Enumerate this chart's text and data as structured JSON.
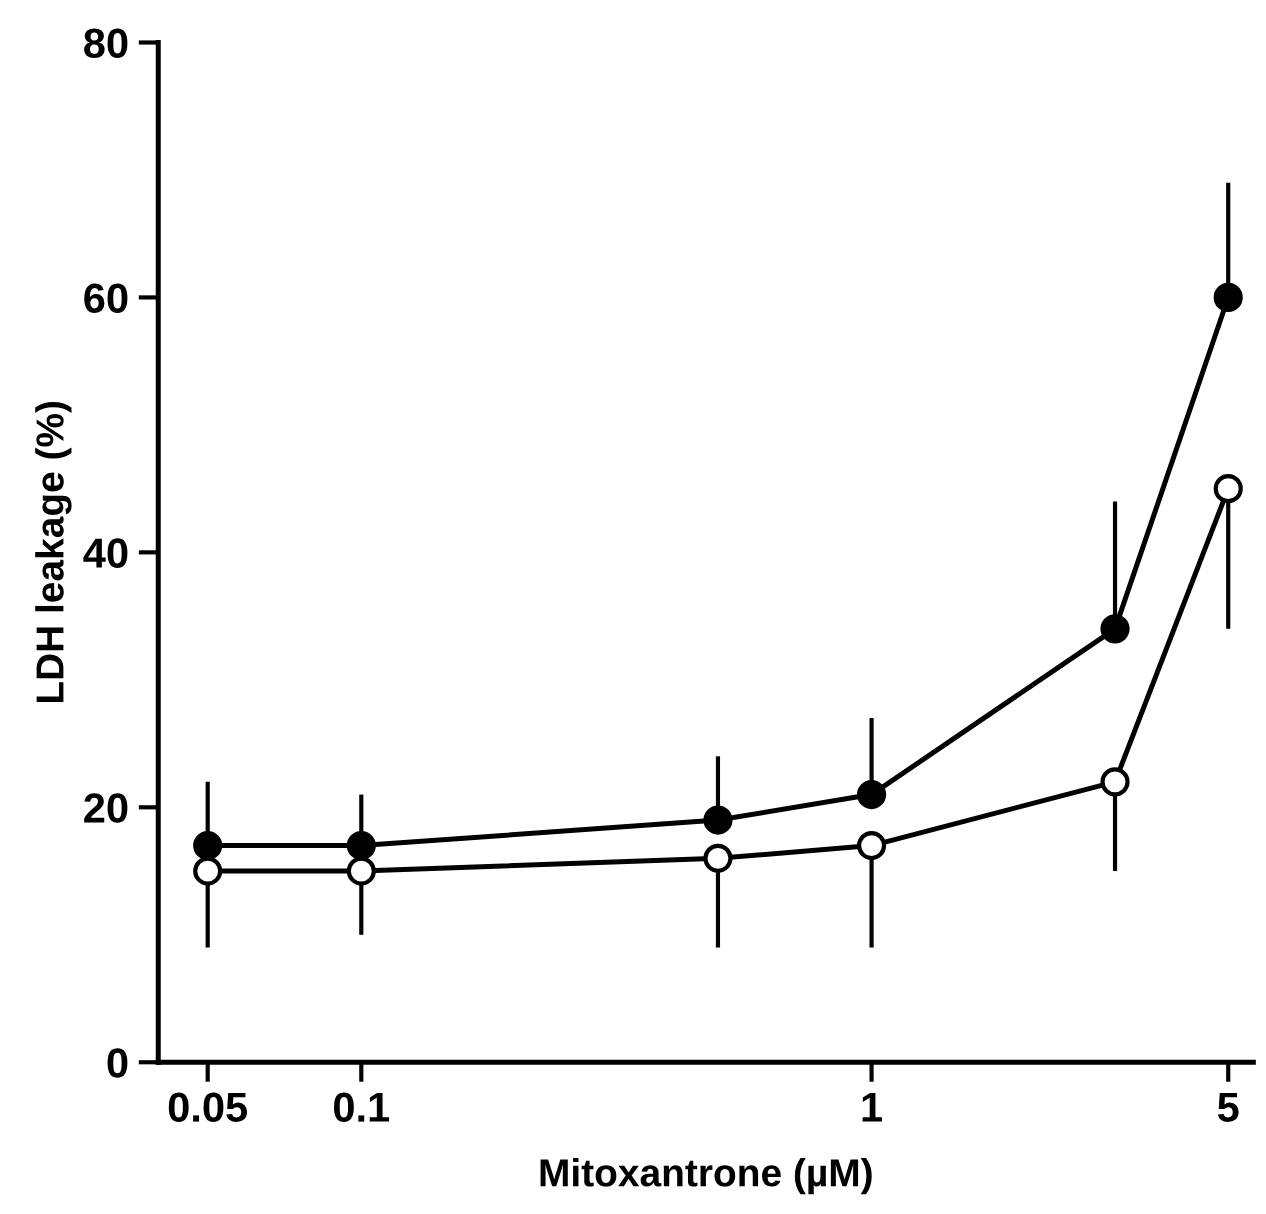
{
  "chart_data": {
    "type": "line",
    "xlabel": "Mitoxantrone (µM)",
    "ylabel": "LDH leakage (%)",
    "x": [
      0.05,
      0.1,
      0.5,
      1,
      3,
      5
    ],
    "series": [
      {
        "color": "#000000",
        "values": [
          17,
          17,
          19,
          21,
          34,
          60
        ],
        "errors": [
          [
            17,
            22
          ],
          [
            17,
            21
          ],
          [
            19,
            24
          ],
          [
            21,
            27
          ],
          [
            34,
            44
          ],
          [
            60,
            69
          ]
        ]
      },
      {
        "color": "#000000",
        "values": [
          15,
          15,
          16,
          17,
          22,
          45
        ],
        "errors": [
          [
            9,
            15
          ],
          [
            10,
            15
          ],
          [
            9,
            16
          ],
          [
            9,
            17
          ],
          [
            15,
            22
          ],
          [
            34,
            45
          ]
        ]
      }
    ],
    "log": "x",
    "xlim": [
      0.04,
      5.6
    ],
    "xticks": [
      0.05,
      0.1,
      1,
      5
    ],
    "ylim": [
      0,
      80
    ],
    "yticks": [
      0,
      20,
      40,
      60,
      80
    ],
    "grid": false,
    "marker": "circle",
    "line_style": "solid"
  }
}
